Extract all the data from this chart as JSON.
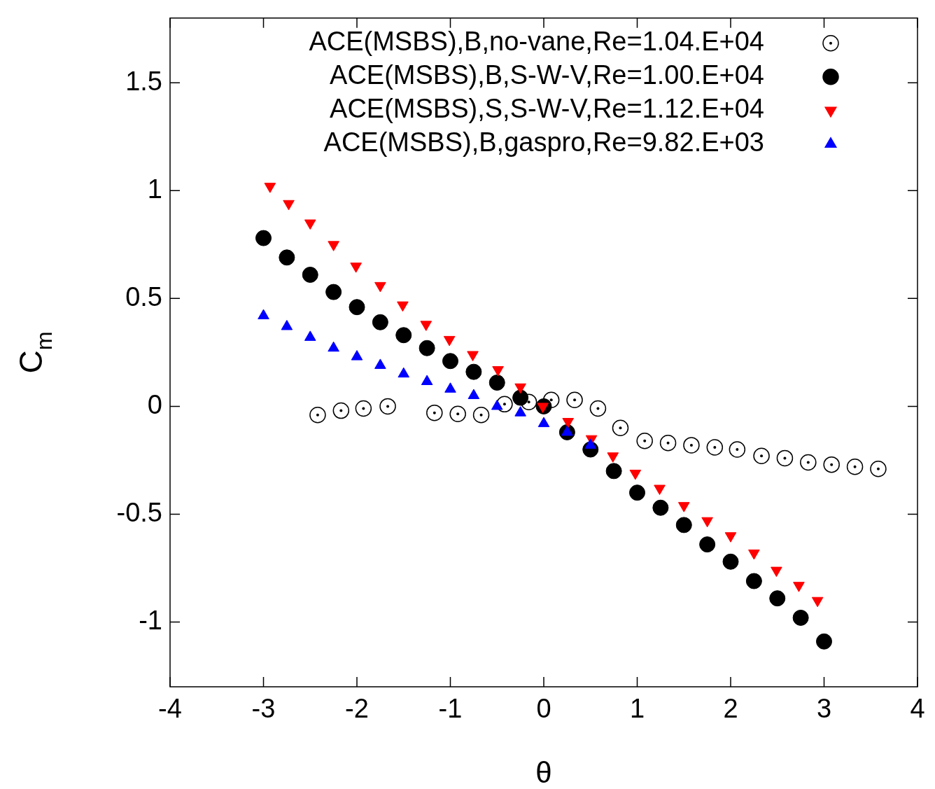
{
  "chart_data": {
    "type": "scatter",
    "xlabel": "θ",
    "ylabel": "C$_{m}$",
    "xlim": [
      -4,
      4
    ],
    "ylim": [
      -1.3,
      1.8
    ],
    "xticks": [
      -4,
      -3,
      -2,
      -1,
      0,
      1,
      2,
      3,
      4
    ],
    "yticks": [
      -1,
      -0.5,
      0,
      0.5,
      1,
      1.5
    ],
    "grid": false,
    "legend": "top right",
    "series": [
      {
        "name": "ACE(MSBS),B,no-vane,Re=1.04.E+04",
        "color": "#000000",
        "marker": "circle-open",
        "x": [
          -2.42,
          -2.17,
          -1.93,
          -1.67,
          -1.17,
          -0.92,
          -0.67,
          -0.42,
          -0.16,
          0.08,
          0.33,
          0.58,
          0.82,
          1.08,
          1.33,
          1.58,
          1.83,
          2.07,
          2.33,
          2.58,
          2.83,
          3.08,
          3.33,
          3.58
        ],
        "values": [
          -0.04,
          -0.02,
          -0.01,
          0.0,
          -0.03,
          -0.035,
          -0.04,
          0.01,
          0.02,
          0.03,
          0.03,
          -0.01,
          -0.1,
          -0.16,
          -0.17,
          -0.18,
          -0.19,
          -0.2,
          -0.23,
          -0.24,
          -0.26,
          -0.27,
          -0.28,
          -0.29
        ]
      },
      {
        "name": "ACE(MSBS),B,S-W-V,Re=1.00.E+04",
        "color": "#000000",
        "marker": "circle",
        "x": [
          -3,
          -2.75,
          -2.5,
          -2.25,
          -2,
          -1.75,
          -1.5,
          -1.25,
          -1,
          -0.75,
          -0.5,
          -0.25,
          0,
          0.25,
          0.5,
          0.75,
          1,
          1.25,
          1.5,
          1.75,
          2,
          2.25,
          2.5,
          2.75,
          3
        ],
        "values": [
          0.78,
          0.69,
          0.61,
          0.53,
          0.46,
          0.39,
          0.33,
          0.27,
          0.21,
          0.16,
          0.11,
          0.04,
          0.0,
          -0.12,
          -0.2,
          -0.3,
          -0.4,
          -0.47,
          -0.55,
          -0.64,
          -0.72,
          -0.81,
          -0.89,
          -0.98,
          -1.09
        ]
      },
      {
        "name": "ACE(MSBS),S,S-W-V,Re=1.12.E+04",
        "color": "#ff0000",
        "marker": "triangle-down",
        "x": [
          -2.93,
          -2.73,
          -2.5,
          -2.25,
          -2.01,
          -1.75,
          -1.51,
          -1.26,
          -1.01,
          -0.76,
          -0.49,
          -0.25,
          -0.01,
          0.26,
          0.51,
          0.74,
          0.98,
          1.24,
          1.5,
          1.75,
          2.0,
          2.25,
          2.49,
          2.73,
          2.93
        ],
        "values": [
          1.02,
          0.94,
          0.85,
          0.75,
          0.65,
          0.56,
          0.47,
          0.38,
          0.31,
          0.24,
          0.17,
          0.09,
          0.0,
          -0.07,
          -0.15,
          -0.23,
          -0.31,
          -0.38,
          -0.46,
          -0.53,
          -0.6,
          -0.68,
          -0.76,
          -0.83,
          -0.9
        ]
      },
      {
        "name": "ACE(MSBS),B,gaspro,Re=9.82.E+03",
        "color": "#0000ff",
        "marker": "triangle",
        "x": [
          -3,
          -2.75,
          -2.5,
          -2.25,
          -2,
          -1.75,
          -1.5,
          -1.25,
          -1,
          -0.75,
          -0.5,
          -0.25,
          0,
          0.25,
          0.5
        ],
        "values": [
          0.42,
          0.37,
          0.32,
          0.27,
          0.23,
          0.19,
          0.15,
          0.115,
          0.08,
          0.05,
          0.0,
          -0.03,
          -0.08,
          -0.12,
          -0.18
        ]
      }
    ]
  }
}
